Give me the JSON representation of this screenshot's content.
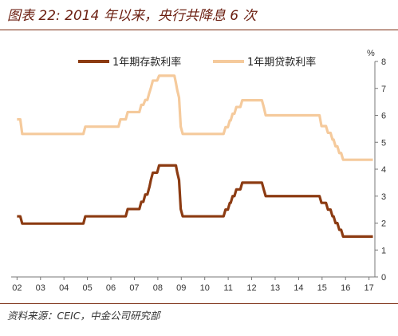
{
  "chart_data": {
    "type": "line",
    "title": "图表 22: 2014 年以来，央行共降息 6 次",
    "xlabel": "",
    "ylabel": "%",
    "x_tick_labels": [
      "02",
      "03",
      "04",
      "05",
      "06",
      "07",
      "08",
      "09",
      "10",
      "11",
      "12",
      "13",
      "14",
      "15",
      "16",
      "17"
    ],
    "xlim": [
      "2001-10-01",
      "2017-04-01"
    ],
    "ylim": [
      0,
      8
    ],
    "y_ticks": [
      0,
      1,
      2,
      3,
      4,
      5,
      6,
      7,
      8
    ],
    "grid": false,
    "legend": "top-center",
    "series": [
      {
        "name": "1年期存款利率",
        "color": "#8C3B12",
        "dates": [
          "2002-01-01",
          "2002-02-21",
          "2004-10-29",
          "2006-08-19",
          "2007-03-18",
          "2007-05-19",
          "2007-07-21",
          "2007-08-22",
          "2007-09-15",
          "2007-12-21",
          "2008-10-09",
          "2008-10-30",
          "2008-11-27",
          "2008-12-23",
          "2010-10-20",
          "2010-12-26",
          "2011-02-09",
          "2011-04-06",
          "2011-07-07",
          "2012-06-08",
          "2012-07-06",
          "2014-11-22",
          "2015-03-01",
          "2015-05-11",
          "2015-06-28",
          "2015-08-26",
          "2015-10-24",
          "2017-03-01"
        ],
        "values": [
          2.25,
          1.98,
          2.25,
          2.52,
          2.79,
          3.06,
          3.33,
          3.6,
          3.87,
          4.14,
          3.87,
          3.6,
          2.52,
          2.25,
          2.5,
          2.75,
          3.0,
          3.25,
          3.5,
          3.25,
          3.0,
          2.75,
          2.5,
          2.25,
          2.0,
          1.75,
          1.5,
          1.5
        ]
      },
      {
        "name": "1年期贷款利率",
        "color": "#F5CA9C",
        "dates": [
          "2002-01-01",
          "2002-02-21",
          "2004-10-29",
          "2006-04-28",
          "2006-08-19",
          "2007-03-18",
          "2007-05-19",
          "2007-07-21",
          "2007-08-22",
          "2007-09-15",
          "2007-12-21",
          "2008-09-16",
          "2008-10-09",
          "2008-10-30",
          "2008-11-27",
          "2008-12-23",
          "2010-10-20",
          "2010-12-26",
          "2011-02-09",
          "2011-04-06",
          "2011-07-07",
          "2012-06-08",
          "2012-07-06",
          "2014-11-22",
          "2015-03-01",
          "2015-05-11",
          "2015-06-28",
          "2015-08-26",
          "2015-10-24",
          "2017-03-01"
        ],
        "values": [
          5.85,
          5.31,
          5.58,
          5.85,
          6.12,
          6.39,
          6.57,
          6.84,
          7.02,
          7.29,
          7.47,
          7.2,
          6.93,
          6.66,
          5.58,
          5.31,
          5.56,
          5.81,
          6.06,
          6.31,
          6.56,
          6.31,
          6.0,
          5.6,
          5.35,
          5.1,
          4.85,
          4.6,
          4.35,
          4.35
        ]
      }
    ]
  },
  "footer": {
    "source": "资料来源：CEIC，中金公司研究部"
  },
  "colors": {
    "title": "#6B1E10",
    "rule": "#7B2D12"
  }
}
